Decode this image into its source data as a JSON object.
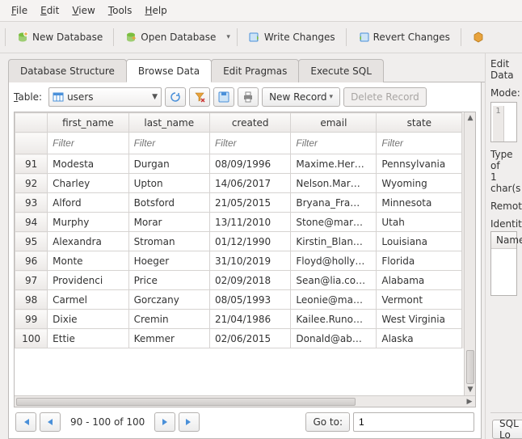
{
  "menubar": {
    "items": [
      {
        "label": "File",
        "accel": "F"
      },
      {
        "label": "Edit",
        "accel": "E"
      },
      {
        "label": "View",
        "accel": "V"
      },
      {
        "label": "Tools",
        "accel": "T"
      },
      {
        "label": "Help",
        "accel": "H"
      }
    ]
  },
  "toolbar": {
    "new_db": "New Database",
    "open_db": "Open Database",
    "write_changes": "Write Changes",
    "revert_changes": "Revert Changes"
  },
  "tabs": {
    "items": [
      "Database Structure",
      "Browse Data",
      "Edit Pragmas",
      "Execute SQL"
    ],
    "active_index": 1
  },
  "table_selector": {
    "label": "Table:",
    "value": "users"
  },
  "record_buttons": {
    "new_label": "New Record",
    "delete_label": "Delete Record"
  },
  "grid": {
    "columns": [
      "first_name",
      "last_name",
      "created",
      "email",
      "state"
    ],
    "filter_placeholder": "Filter",
    "rows": [
      {
        "n": 91,
        "first_name": "Modesta",
        "last_name": "Durgan",
        "created": "08/09/1996",
        "email": "Maxime.Her…",
        "state": "Pennsylvania"
      },
      {
        "n": 92,
        "first_name": "Charley",
        "last_name": "Upton",
        "created": "14/06/2017",
        "email": "Nelson.Mar…",
        "state": "Wyoming"
      },
      {
        "n": 93,
        "first_name": "Alford",
        "last_name": "Botsford",
        "created": "21/05/2015",
        "email": "Bryana_Fra…",
        "state": "Minnesota"
      },
      {
        "n": 94,
        "first_name": "Murphy",
        "last_name": "Morar",
        "created": "13/11/2010",
        "email": "Stone@mar…",
        "state": "Utah"
      },
      {
        "n": 95,
        "first_name": "Alexandra",
        "last_name": "Stroman",
        "created": "01/12/1990",
        "email": "Kirstin_Blan…",
        "state": "Louisiana"
      },
      {
        "n": 96,
        "first_name": "Monte",
        "last_name": "Hoeger",
        "created": "31/10/2019",
        "email": "Floyd@holly…",
        "state": "Florida"
      },
      {
        "n": 97,
        "first_name": "Providenci",
        "last_name": "Price",
        "created": "02/09/2018",
        "email": "Sean@lia.co…",
        "state": "Alabama"
      },
      {
        "n": 98,
        "first_name": "Carmel",
        "last_name": "Gorczany",
        "created": "08/05/1993",
        "email": "Leonie@ma…",
        "state": "Vermont"
      },
      {
        "n": 99,
        "first_name": "Dixie",
        "last_name": "Cremin",
        "created": "21/04/1986",
        "email": "Kailee.Runo…",
        "state": "West Virginia"
      },
      {
        "n": 100,
        "first_name": "Ettie",
        "last_name": "Kemmer",
        "created": "02/06/2015",
        "email": "Donald@ab…",
        "state": "Alaska"
      }
    ]
  },
  "pager": {
    "range_text": "90 - 100 of 100",
    "goto_label": "Go to:",
    "goto_value": "1"
  },
  "right_panel": {
    "edit_title": "Edit Data",
    "mode_label": "Mode:",
    "mode_gutter": "1",
    "type_label": "Type of",
    "charcount": "1 char(s",
    "remote_label": "Remote",
    "identity_label": "Identity",
    "name_header": "Name",
    "sql_button": "SQL Lo"
  },
  "colors": {
    "accent_green": "#7bbf3f",
    "accent_blue": "#4a90d9",
    "accent_orange": "#e8a33d"
  }
}
